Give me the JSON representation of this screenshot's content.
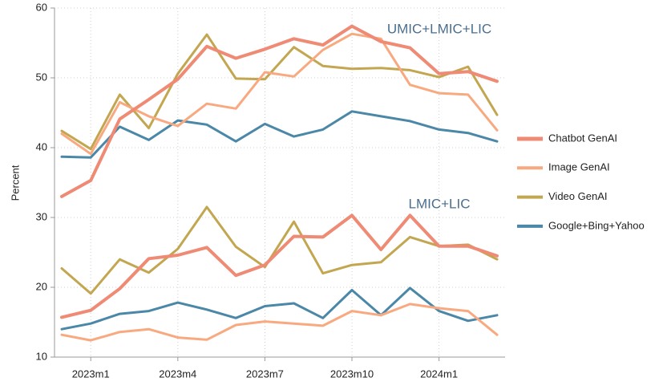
{
  "chart_data": {
    "type": "line",
    "y_label": "Percent",
    "categories": [
      null,
      "2023m1",
      null,
      null,
      "2023m4",
      null,
      null,
      "2023m7",
      null,
      null,
      "2023m10",
      null,
      null,
      "2024m1",
      null,
      null
    ],
    "ylim": [
      10,
      60
    ],
    "yticks": [
      10,
      20,
      30,
      40,
      50,
      60
    ],
    "grid": true,
    "series": [
      {
        "name": "Chatbot GenAI",
        "color": "#ef8a74"
      },
      {
        "name": "Image GenAI",
        "color": "#f8a97f"
      },
      {
        "name": "Video GenAI",
        "color": "#c2a650"
      },
      {
        "name": "Google+Bing+Yahoo",
        "color": "#4b88a8"
      }
    ],
    "groups": [
      {
        "label": "UMIC+LMIC+LIC",
        "values": [
          [
            33,
            35.3,
            44.1,
            46.9,
            49.8,
            54.5,
            52.8,
            54.1,
            55.6,
            54.7,
            57.4,
            55.2,
            54.3,
            50.6,
            50.9,
            49.5
          ],
          [
            42,
            39.1,
            46.5,
            44.5,
            43.1,
            46.3,
            45.6,
            50.8,
            50.2,
            54,
            56.3,
            55.6,
            49,
            47.8,
            47.6,
            42.5
          ],
          [
            42.4,
            39.8,
            47.6,
            42.8,
            50.6,
            56.2,
            49.9,
            49.8,
            54.4,
            51.7,
            51.3,
            51.4,
            51.1,
            50.1,
            51.6,
            44.7
          ],
          [
            38.7,
            38.6,
            43,
            41.1,
            43.9,
            43.3,
            40.9,
            43.4,
            41.6,
            42.6,
            45.2,
            44.5,
            43.8,
            42.6,
            42.1,
            40.9
          ]
        ]
      },
      {
        "label": "LMIC+LIC",
        "values": [
          [
            15.7,
            16.7,
            19.8,
            24.1,
            24.6,
            25.7,
            21.7,
            23.2,
            27.3,
            27.2,
            30.3,
            25.4,
            30.3,
            25.9,
            25.9,
            24.5
          ],
          [
            13.2,
            12.4,
            13.6,
            14,
            12.8,
            12.5,
            14.6,
            15.1,
            14.8,
            14.5,
            16.6,
            16,
            17.6,
            17,
            16.6,
            13.2
          ],
          [
            22.7,
            19.1,
            24,
            22.1,
            25.5,
            31.5,
            25.8,
            22.9,
            29.4,
            22,
            23.2,
            23.6,
            27.2,
            25.9,
            26.1,
            24
          ],
          [
            14,
            14.8,
            16.2,
            16.6,
            17.8,
            16.8,
            15.6,
            17.3,
            17.7,
            15.6,
            19.6,
            16,
            19.9,
            16.6,
            15.2,
            16
          ]
        ]
      }
    ]
  }
}
